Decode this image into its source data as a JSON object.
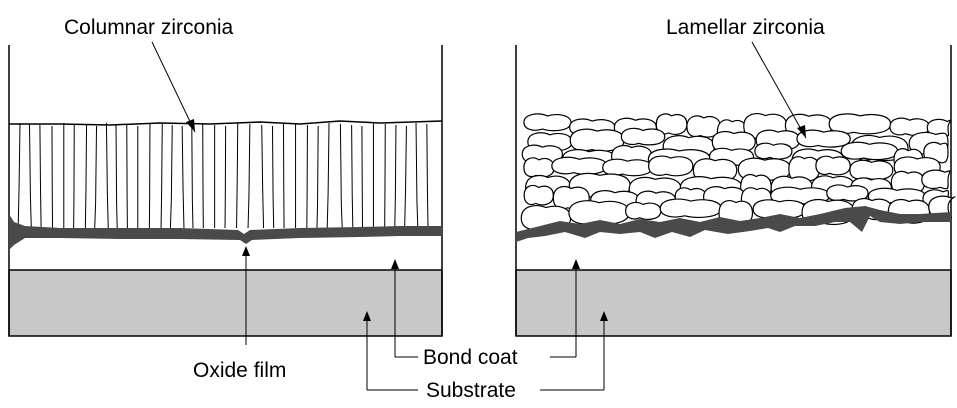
{
  "labels": {
    "columnar": "Columnar zirconia",
    "lamellar": "Lamellar zirconia",
    "oxide_film": "Oxide film",
    "bond_coat": "Bond coat",
    "substrate": "Substrate"
  },
  "colors": {
    "substrate_fill": "#c8c8c8",
    "oxide_fill": "#4a4a4a",
    "line": "#000000"
  }
}
